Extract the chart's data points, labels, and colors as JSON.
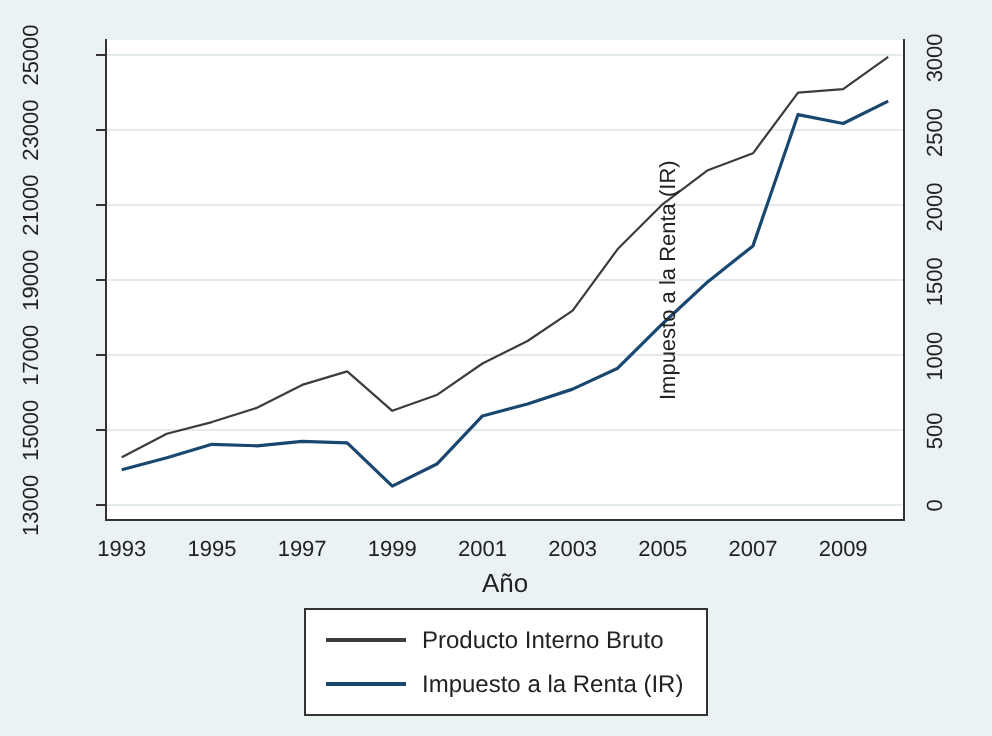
{
  "chart_data": {
    "type": "line",
    "xlabel": "Año",
    "y2label": "Impuesto a la Renta (IR)",
    "x": [
      1993,
      1994,
      1995,
      1996,
      1997,
      1998,
      1999,
      2000,
      2001,
      2002,
      2003,
      2004,
      2005,
      2006,
      2007,
      2008,
      2009,
      2010
    ],
    "series": [
      {
        "name": "Producto Interno Bruto",
        "color": "#3c3c3c",
        "values": [
          14280,
          14910,
          15220,
          15600,
          16210,
          16570,
          15520,
          15950,
          16780,
          17380,
          18190,
          19830,
          21030,
          21930,
          22380,
          24000,
          24090,
          24950
        ]
      },
      {
        "name": "Impuesto a la Renta (IR)",
        "color": "#1a476f",
        "axis": "y2",
        "values": [
          240,
          320,
          410,
          400,
          430,
          420,
          130,
          280,
          600,
          680,
          780,
          920,
          1220,
          1500,
          1740,
          2620,
          2560,
          2710
        ]
      }
    ],
    "xlim": [
      1992.65,
      2010.35
    ],
    "xticks": [
      1993,
      1995,
      1997,
      1999,
      2001,
      2003,
      2005,
      2007,
      2009
    ],
    "ylim": [
      12600,
      25400
    ],
    "yticks": [
      13000,
      15000,
      17000,
      19000,
      21000,
      23000,
      25000
    ],
    "y2lim": [
      -100,
      3120
    ],
    "y2ticks": [
      0,
      500,
      1000,
      1500,
      2000,
      2500,
      3000
    ],
    "grid": "y",
    "legend": "bottom",
    "marker": "none",
    "line_style": "solid"
  }
}
